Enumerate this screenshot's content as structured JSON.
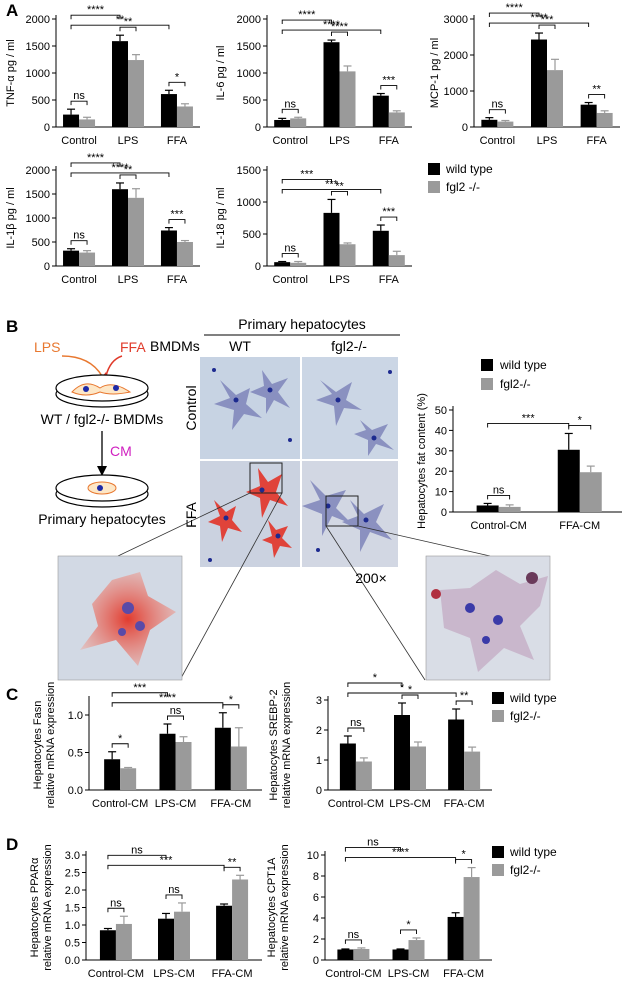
{
  "panel_labels": [
    "A",
    "B",
    "C",
    "D"
  ],
  "legend_entries": [
    "wild type",
    "fgl2 -/-"
  ],
  "legend_entries_bd": [
    "wild type",
    "fgl2-/-"
  ],
  "colors": {
    "wild_type": "#000000",
    "fgl2": "#9a9a9a",
    "accent_red": "#e03a2a",
    "accent_magenta": "#d020c0",
    "accent_orange": "#e87830"
  },
  "schematic": {
    "lps": "LPS",
    "ffa": "FFA",
    "bmdm_label": "WT / fgl2-/- BMDMs",
    "cm": "CM",
    "hep_label": "Primary hepatocytes"
  },
  "micrograph": {
    "title": "Primary hepatocytes",
    "bmdms": "BMDMs",
    "wt": "WT",
    "ko": "fgl2-/-",
    "row_control": "Control",
    "row_ffa": "FFA",
    "magnification": "200×"
  },
  "chart_data": [
    {
      "id": "tnf",
      "type": "bar",
      "panel": "A",
      "ylabel": "TNF-α pg / ml",
      "categories": [
        "Control",
        "LPS",
        "FFA"
      ],
      "ylim": [
        0,
        2000
      ],
      "yticks": [
        0,
        500,
        1000,
        1500,
        2000
      ],
      "series": [
        {
          "name": "wild type",
          "values": [
            230,
            1590,
            610
          ],
          "errors": [
            100,
            110,
            70
          ]
        },
        {
          "name": "fgl2 -/-",
          "values": [
            140,
            1240,
            380
          ],
          "errors": [
            40,
            100,
            50
          ]
        }
      ],
      "significance": [
        {
          "label": "ns",
          "from": [
            0,
            0
          ],
          "to": [
            0,
            1
          ]
        },
        {
          "label": "**",
          "from": [
            0,
            0
          ],
          "to": [
            2,
            0
          ]
        },
        {
          "label": "****",
          "from": [
            0,
            0
          ],
          "to": [
            1,
            0
          ]
        },
        {
          "label": "**",
          "from": [
            1,
            0
          ],
          "to": [
            1,
            1
          ]
        },
        {
          "label": "*",
          "from": [
            2,
            0
          ],
          "to": [
            2,
            1
          ]
        }
      ]
    },
    {
      "id": "il6",
      "type": "bar",
      "panel": "A",
      "ylabel": "IL-6 pg / ml",
      "categories": [
        "Control",
        "LPS",
        "FFA"
      ],
      "ylim": [
        0,
        2000
      ],
      "yticks": [
        0,
        500,
        1000,
        1500,
        2000
      ],
      "series": [
        {
          "name": "wild type",
          "values": [
            130,
            1570,
            580
          ],
          "errors": [
            30,
            40,
            40
          ]
        },
        {
          "name": "fgl2 -/-",
          "values": [
            160,
            1030,
            270
          ],
          "errors": [
            20,
            100,
            30
          ]
        }
      ],
      "significance": [
        {
          "label": "ns",
          "from": [
            0,
            0
          ],
          "to": [
            0,
            1
          ]
        },
        {
          "label": "****",
          "from": [
            0,
            0
          ],
          "to": [
            2,
            0
          ]
        },
        {
          "label": "****",
          "from": [
            0,
            0
          ],
          "to": [
            1,
            0
          ]
        },
        {
          "label": "****",
          "from": [
            1,
            0
          ],
          "to": [
            1,
            1
          ]
        },
        {
          "label": "***",
          "from": [
            2,
            0
          ],
          "to": [
            2,
            1
          ]
        }
      ]
    },
    {
      "id": "mcp1",
      "type": "bar",
      "panel": "A",
      "ylabel": "MCP-1 pg / ml",
      "categories": [
        "Control",
        "LPS",
        "FFA"
      ],
      "ylim": [
        0,
        3000
      ],
      "yticks": [
        0,
        1000,
        2000,
        3000
      ],
      "series": [
        {
          "name": "wild type",
          "values": [
            200,
            2430,
            620
          ],
          "errors": [
            60,
            180,
            60
          ]
        },
        {
          "name": "fgl2 -/-",
          "values": [
            150,
            1580,
            390
          ],
          "errors": [
            30,
            300,
            60
          ]
        }
      ],
      "significance": [
        {
          "label": "ns",
          "from": [
            0,
            0
          ],
          "to": [
            0,
            1
          ]
        },
        {
          "label": "****",
          "from": [
            0,
            0
          ],
          "to": [
            2,
            0
          ]
        },
        {
          "label": "****",
          "from": [
            0,
            0
          ],
          "to": [
            1,
            0
          ]
        },
        {
          "label": "***",
          "from": [
            1,
            0
          ],
          "to": [
            1,
            1
          ]
        },
        {
          "label": "**",
          "from": [
            2,
            0
          ],
          "to": [
            2,
            1
          ]
        }
      ]
    },
    {
      "id": "il1b",
      "type": "bar",
      "panel": "A",
      "ylabel": "IL-1β pg / ml",
      "categories": [
        "Control",
        "LPS",
        "FFA"
      ],
      "ylim": [
        0,
        2000
      ],
      "yticks": [
        0,
        500,
        1000,
        1500,
        2000
      ],
      "series": [
        {
          "name": "wild type",
          "values": [
            320,
            1600,
            740
          ],
          "errors": [
            40,
            130,
            60
          ]
        },
        {
          "name": "fgl2 -/-",
          "values": [
            280,
            1420,
            500
          ],
          "errors": [
            40,
            190,
            30
          ]
        }
      ],
      "significance": [
        {
          "label": "ns",
          "from": [
            0,
            0
          ],
          "to": [
            0,
            1
          ]
        },
        {
          "label": "****",
          "from": [
            0,
            0
          ],
          "to": [
            2,
            0
          ]
        },
        {
          "label": "****",
          "from": [
            0,
            0
          ],
          "to": [
            1,
            0
          ]
        },
        {
          "label": "**",
          "from": [
            1,
            0
          ],
          "to": [
            1,
            1
          ]
        },
        {
          "label": "***",
          "from": [
            2,
            0
          ],
          "to": [
            2,
            1
          ]
        }
      ]
    },
    {
      "id": "il18",
      "type": "bar",
      "panel": "A",
      "ylabel": "IL-18 pg / ml",
      "categories": [
        "Control",
        "LPS",
        "FFA"
      ],
      "ylim": [
        0,
        1500
      ],
      "yticks": [
        0,
        500,
        1000,
        1500
      ],
      "series": [
        {
          "name": "wild type",
          "values": [
            60,
            830,
            550
          ],
          "errors": [
            10,
            210,
            90
          ]
        },
        {
          "name": "fgl2 -/-",
          "values": [
            50,
            340,
            170
          ],
          "errors": [
            20,
            20,
            60
          ]
        }
      ],
      "significance": [
        {
          "label": "ns",
          "from": [
            0,
            0
          ],
          "to": [
            0,
            1
          ]
        },
        {
          "label": "***",
          "from": [
            0,
            0
          ],
          "to": [
            2,
            0
          ]
        },
        {
          "label": "***",
          "from": [
            0,
            0
          ],
          "to": [
            1,
            0
          ]
        },
        {
          "label": "**",
          "from": [
            1,
            0
          ],
          "to": [
            1,
            1
          ]
        },
        {
          "label": "***",
          "from": [
            2,
            0
          ],
          "to": [
            2,
            1
          ]
        }
      ]
    },
    {
      "id": "fat",
      "type": "bar",
      "panel": "B",
      "ylabel": "Hepatocytes fat content (%)",
      "categories": [
        "Control-CM",
        "FFA-CM"
      ],
      "ylim": [
        0,
        50
      ],
      "yticks": [
        0,
        10,
        20,
        30,
        40,
        50
      ],
      "series": [
        {
          "name": "wild type",
          "values": [
            3.2,
            30.5
          ],
          "errors": [
            1.0,
            8.0
          ]
        },
        {
          "name": "fgl2-/-",
          "values": [
            2.5,
            19.5
          ],
          "errors": [
            1.0,
            3.0
          ]
        }
      ],
      "significance": [
        {
          "label": "ns",
          "from": [
            0,
            0
          ],
          "to": [
            0,
            1
          ]
        },
        {
          "label": "***",
          "from": [
            0,
            0
          ],
          "to": [
            1,
            0
          ]
        },
        {
          "label": "*",
          "from": [
            1,
            0
          ],
          "to": [
            1,
            1
          ]
        }
      ]
    },
    {
      "id": "fasn",
      "type": "bar",
      "panel": "C",
      "ylabel": "Hepatocytes Fasn relative mRNA expression",
      "categories": [
        "Control-CM",
        "LPS-CM",
        "FFA-CM"
      ],
      "ylim": [
        0,
        1.2
      ],
      "yticks": [
        0.0,
        0.5,
        1.0
      ],
      "series": [
        {
          "name": "wild type",
          "values": [
            0.41,
            0.75,
            0.83
          ],
          "errors": [
            0.1,
            0.13,
            0.2
          ]
        },
        {
          "name": "fgl2-/-",
          "values": [
            0.29,
            0.64,
            0.58
          ],
          "errors": [
            0.01,
            0.07,
            0.25
          ]
        }
      ],
      "significance": [
        {
          "label": "*",
          "from": [
            0,
            0
          ],
          "to": [
            0,
            1
          ]
        },
        {
          "label": "****",
          "from": [
            0,
            0
          ],
          "to": [
            2,
            0
          ]
        },
        {
          "label": "***",
          "from": [
            0,
            0
          ],
          "to": [
            1,
            0
          ]
        },
        {
          "label": "ns",
          "from": [
            1,
            0
          ],
          "to": [
            1,
            1
          ]
        },
        {
          "label": "*",
          "from": [
            2,
            0
          ],
          "to": [
            2,
            1
          ]
        }
      ]
    },
    {
      "id": "srebp2",
      "type": "bar",
      "panel": "C",
      "ylabel": "Hepatocytes SREBP-2 relative mRNA expression",
      "categories": [
        "Control-CM",
        "LPS-CM",
        "FFA-CM"
      ],
      "ylim": [
        0,
        3
      ],
      "yticks": [
        0,
        1,
        2,
        3
      ],
      "series": [
        {
          "name": "wild type",
          "values": [
            1.55,
            2.5,
            2.35
          ],
          "errors": [
            0.25,
            0.4,
            0.35
          ]
        },
        {
          "name": "fgl2-/-",
          "values": [
            0.95,
            1.45,
            1.28
          ],
          "errors": [
            0.12,
            0.15,
            0.15
          ]
        }
      ],
      "significance": [
        {
          "label": "ns",
          "from": [
            0,
            0
          ],
          "to": [
            0,
            1
          ]
        },
        {
          "label": "*",
          "from": [
            0,
            0
          ],
          "to": [
            2,
            0
          ]
        },
        {
          "label": "*",
          "from": [
            0,
            0
          ],
          "to": [
            1,
            0
          ]
        },
        {
          "label": "*",
          "from": [
            1,
            0
          ],
          "to": [
            1,
            1
          ]
        },
        {
          "label": "**",
          "from": [
            2,
            0
          ],
          "to": [
            2,
            1
          ]
        }
      ]
    },
    {
      "id": "ppara",
      "type": "bar",
      "panel": "D",
      "ylabel": "Hepatocytes PPARα relative mRNA expression",
      "categories": [
        "Control-CM",
        "LPS-CM",
        "FFA-CM"
      ],
      "ylim": [
        0,
        3.0
      ],
      "yticks": [
        0.0,
        0.5,
        1.0,
        1.5,
        2.0,
        2.5,
        3.0
      ],
      "series": [
        {
          "name": "wild type",
          "values": [
            0.85,
            1.18,
            1.55
          ],
          "errors": [
            0.05,
            0.15,
            0.05
          ]
        },
        {
          "name": "fgl2-/-",
          "values": [
            1.03,
            1.38,
            2.3
          ],
          "errors": [
            0.22,
            0.25,
            0.12
          ]
        }
      ],
      "significance": [
        {
          "label": "ns",
          "from": [
            0,
            0
          ],
          "to": [
            0,
            1
          ]
        },
        {
          "label": "***",
          "from": [
            0,
            0
          ],
          "to": [
            2,
            0
          ]
        },
        {
          "label": "ns",
          "from": [
            0,
            0
          ],
          "to": [
            1,
            0
          ]
        },
        {
          "label": "ns",
          "from": [
            1,
            0
          ],
          "to": [
            1,
            1
          ]
        },
        {
          "label": "**",
          "from": [
            2,
            0
          ],
          "to": [
            2,
            1
          ]
        }
      ]
    },
    {
      "id": "cpt1a",
      "type": "bar",
      "panel": "D",
      "ylabel": "Hepatocytes CPT1A relative mRNA expression",
      "categories": [
        "Control-CM",
        "LPS-CM",
        "FFA-CM"
      ],
      "ylim": [
        0,
        10
      ],
      "yticks": [
        0,
        2,
        4,
        6,
        8,
        10
      ],
      "series": [
        {
          "name": "wild type",
          "values": [
            1.0,
            1.0,
            4.1
          ],
          "errors": [
            0.05,
            0.05,
            0.4
          ]
        },
        {
          "name": "fgl2-/-",
          "values": [
            1.05,
            1.9,
            7.9
          ],
          "errors": [
            0.1,
            0.2,
            0.9
          ]
        }
      ],
      "significance": [
        {
          "label": "ns",
          "from": [
            0,
            0
          ],
          "to": [
            0,
            1
          ]
        },
        {
          "label": "****",
          "from": [
            0,
            0
          ],
          "to": [
            2,
            0
          ]
        },
        {
          "label": "ns",
          "from": [
            0,
            0
          ],
          "to": [
            1,
            0
          ]
        },
        {
          "label": "*",
          "from": [
            1,
            0
          ],
          "to": [
            1,
            1
          ]
        },
        {
          "label": "*",
          "from": [
            2,
            0
          ],
          "to": [
            2,
            1
          ]
        }
      ]
    }
  ]
}
